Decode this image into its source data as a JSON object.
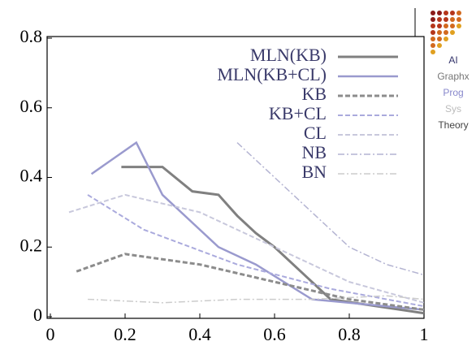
{
  "chart_data": {
    "type": "line",
    "xlim": [
      0,
      1
    ],
    "ylim": [
      0,
      0.8
    ],
    "xticks": [
      0,
      0.2,
      0.4,
      0.6,
      0.8,
      1
    ],
    "yticks": [
      0,
      0.2,
      0.4,
      0.6,
      0.8
    ],
    "series": [
      {
        "name": "MLN(KB)",
        "color": "#808080",
        "width": 3,
        "dash": "none",
        "x": [
          0.19,
          0.3,
          0.38,
          0.45,
          0.5,
          0.55,
          0.6,
          0.75,
          1
        ],
        "values": [
          0.43,
          0.43,
          0.36,
          0.35,
          0.29,
          0.24,
          0.2,
          0.05,
          0.01
        ]
      },
      {
        "name": "MLN(KB+CL)",
        "color": "#9a9ace",
        "width": 2.5,
        "dash": "none",
        "x": [
          0.11,
          0.23,
          0.3,
          0.45,
          0.55,
          0.7,
          1
        ],
        "values": [
          0.41,
          0.5,
          0.35,
          0.2,
          0.15,
          0.05,
          0.02
        ]
      },
      {
        "name": "KB",
        "color": "#8c8c8c",
        "width": 3,
        "dash": "6,3",
        "x": [
          0.07,
          0.2,
          0.4,
          0.6,
          0.8,
          1
        ],
        "values": [
          0.13,
          0.18,
          0.15,
          0.1,
          0.05,
          0.02
        ]
      },
      {
        "name": "KB+CL",
        "color": "#aaaadd",
        "width": 2,
        "dash": "6,3",
        "x": [
          0.1,
          0.25,
          0.5,
          0.75,
          1
        ],
        "values": [
          0.35,
          0.25,
          0.15,
          0.08,
          0.03
        ]
      },
      {
        "name": "CL",
        "color": "#c8c8dc",
        "width": 2,
        "dash": "6,3",
        "x": [
          0.05,
          0.2,
          0.4,
          0.6,
          0.8,
          1
        ],
        "values": [
          0.3,
          0.35,
          0.3,
          0.2,
          0.1,
          0.04
        ]
      },
      {
        "name": "NB",
        "color": "#b4b4d2",
        "width": 1.5,
        "dash": "8,3,2,3",
        "x": [
          0.5,
          0.6,
          0.7,
          0.8,
          0.9,
          1
        ],
        "values": [
          0.5,
          0.4,
          0.3,
          0.2,
          0.15,
          0.12
        ]
      },
      {
        "name": "BN",
        "color": "#cccccc",
        "width": 1.5,
        "dash": "8,3,2,3",
        "x": [
          0.1,
          0.3,
          0.5,
          0.7,
          0.9,
          1
        ],
        "values": [
          0.05,
          0.04,
          0.05,
          0.05,
          0.06,
          0.05
        ]
      }
    ],
    "side_labels": [
      {
        "text": "AI",
        "color": "#33336a"
      },
      {
        "text": "Graphx",
        "color": "#777777"
      },
      {
        "text": "Prog",
        "color": "#8888cc"
      },
      {
        "text": "Sys",
        "color": "#bbbbbb"
      },
      {
        "text": "Theory",
        "color": "#444444"
      }
    ]
  }
}
